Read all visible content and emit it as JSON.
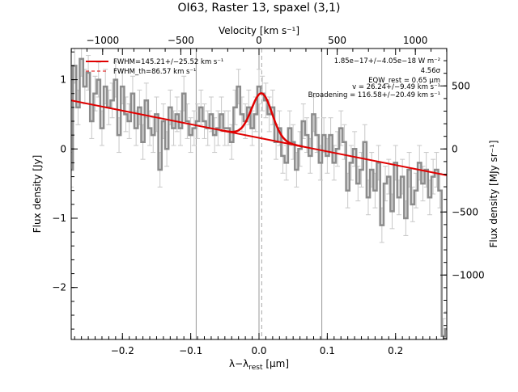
{
  "chart_data": {
    "type": "line",
    "title": "OI63, Raster 13, spaxel (3,1)",
    "xlabel": "λ−λ_rest [μm]",
    "xlabel_parts": {
      "main": "λ−λ",
      "sub": "rest",
      "unit": " [μm]"
    },
    "ylabel": "Flux density [Jy]",
    "ylabel_right": "Flux density [MJy sr⁻¹]",
    "xlabel_top": "Velocity [km s⁻¹]",
    "xlim": [
      -0.275,
      0.275
    ],
    "ylim": [
      -2.75,
      1.45
    ],
    "right_axis_scale": 0.00182,
    "top_axis_scale": 0.000229,
    "x_ticks": [
      -0.2,
      -0.1,
      0.0,
      0.1,
      0.2
    ],
    "x_tick_labels": [
      "−0.2",
      "−0.1",
      "0.0",
      "0.1",
      "0.2"
    ],
    "y_ticks": [
      -2,
      -1,
      0,
      1
    ],
    "y_tick_labels": [
      "−2",
      "−1",
      "0",
      "1"
    ],
    "right_ticks": [
      -1000,
      -500,
      0,
      500
    ],
    "right_tick_labels": [
      "−1000",
      "−500",
      "0",
      "500"
    ],
    "top_ticks": [
      -1000,
      -500,
      0,
      500,
      1000
    ],
    "top_tick_labels": [
      "−1000",
      "−500",
      "0",
      "500",
      "1000"
    ],
    "vertical_lines": [
      -0.092,
      0.0,
      0.092
    ],
    "dashed_line": 0.004,
    "series": [
      {
        "kind": "data-step",
        "color": "#8c8c8c",
        "x": [
          -0.275,
          -0.27,
          -0.265,
          -0.26,
          -0.255,
          -0.25,
          -0.245,
          -0.24,
          -0.235,
          -0.23,
          -0.225,
          -0.22,
          -0.215,
          -0.21,
          -0.205,
          -0.2,
          -0.195,
          -0.19,
          -0.185,
          -0.18,
          -0.175,
          -0.17,
          -0.165,
          -0.16,
          -0.155,
          -0.15,
          -0.145,
          -0.14,
          -0.135,
          -0.13,
          -0.125,
          -0.12,
          -0.115,
          -0.11,
          -0.105,
          -0.1,
          -0.095,
          -0.09,
          -0.085,
          -0.08,
          -0.075,
          -0.07,
          -0.065,
          -0.06,
          -0.055,
          -0.05,
          -0.045,
          -0.04,
          -0.035,
          -0.03,
          -0.025,
          -0.02,
          -0.015,
          -0.01,
          -0.005,
          0.0,
          0.005,
          0.01,
          0.015,
          0.02,
          0.025,
          0.03,
          0.035,
          0.04,
          0.045,
          0.05,
          0.055,
          0.06,
          0.065,
          0.07,
          0.075,
          0.08,
          0.085,
          0.09,
          0.095,
          0.1,
          0.105,
          0.11,
          0.115,
          0.12,
          0.125,
          0.13,
          0.135,
          0.14,
          0.145,
          0.15,
          0.155,
          0.16,
          0.165,
          0.17,
          0.175,
          0.18,
          0.185,
          0.19,
          0.195,
          0.2,
          0.205,
          0.21,
          0.215,
          0.22,
          0.225,
          0.23,
          0.235,
          0.24,
          0.245,
          0.25,
          0.255,
          0.26,
          0.265,
          0.27,
          0.275
        ],
        "y": [
          -0.3,
          1.2,
          0.6,
          1.3,
          0.9,
          1.1,
          0.4,
          0.8,
          1.0,
          0.3,
          0.9,
          0.6,
          0.7,
          1.0,
          0.2,
          0.9,
          0.5,
          0.4,
          0.8,
          0.3,
          0.6,
          0.1,
          0.7,
          0.3,
          0.2,
          0.5,
          -0.3,
          0.4,
          0.0,
          0.6,
          0.3,
          0.5,
          0.3,
          0.8,
          0.4,
          0.2,
          0.3,
          0.4,
          0.6,
          0.4,
          0.3,
          0.5,
          0.2,
          0.3,
          0.5,
          0.3,
          0.3,
          0.1,
          0.6,
          0.9,
          0.5,
          0.4,
          0.6,
          0.3,
          0.5,
          0.9,
          0.8,
          0.7,
          0.5,
          0.6,
          0.1,
          0.3,
          -0.1,
          -0.2,
          0.3,
          0.1,
          -0.3,
          0.0,
          0.4,
          0.2,
          -0.1,
          0.5,
          0.2,
          -0.2,
          0.2,
          -0.1,
          0.2,
          -0.2,
          0.0,
          0.3,
          0.1,
          -0.6,
          -0.2,
          0.0,
          -0.5,
          -0.3,
          0.1,
          -0.7,
          -0.3,
          -0.6,
          -0.2,
          -1.1,
          -0.5,
          -0.4,
          -0.9,
          -0.2,
          -0.7,
          -0.4,
          -1.0,
          -0.3,
          -0.8,
          -0.6,
          -0.2,
          -0.5,
          -0.3,
          -0.7,
          -0.4,
          -0.3,
          -0.6,
          -2.7,
          -2.6
        ],
        "err": 0.25
      },
      {
        "kind": "continuum",
        "color": "#e00000",
        "x": [
          -0.275,
          0.275
        ],
        "y": [
          0.7,
          -0.38
        ]
      },
      {
        "kind": "gaussian-fit",
        "color": "#e00000",
        "center": 0.004,
        "amplitude": 0.65,
        "sigma": 0.015
      },
      {
        "kind": "gaussian-component",
        "color": "#e08000",
        "center": 0.004,
        "amplitude": 0.65,
        "sigma": 0.015
      }
    ],
    "legend": [
      {
        "label": "FWHM=145.21+/−25.52 km s⁻¹",
        "style": "solid",
        "color": "#e00000"
      },
      {
        "label": "FWHM_th=86.57 km s⁻¹",
        "style": "dashed",
        "color": "#e00000"
      }
    ],
    "annotations": [
      "1.85e−17+/−4.05e−18 W m⁻²",
      "4.56σ",
      "EQW_rest = 0.65 μm",
      "v = 26.24+/−9.49 km s⁻¹",
      "Broadening = 116.58+/−20.49 km s⁻¹"
    ]
  }
}
